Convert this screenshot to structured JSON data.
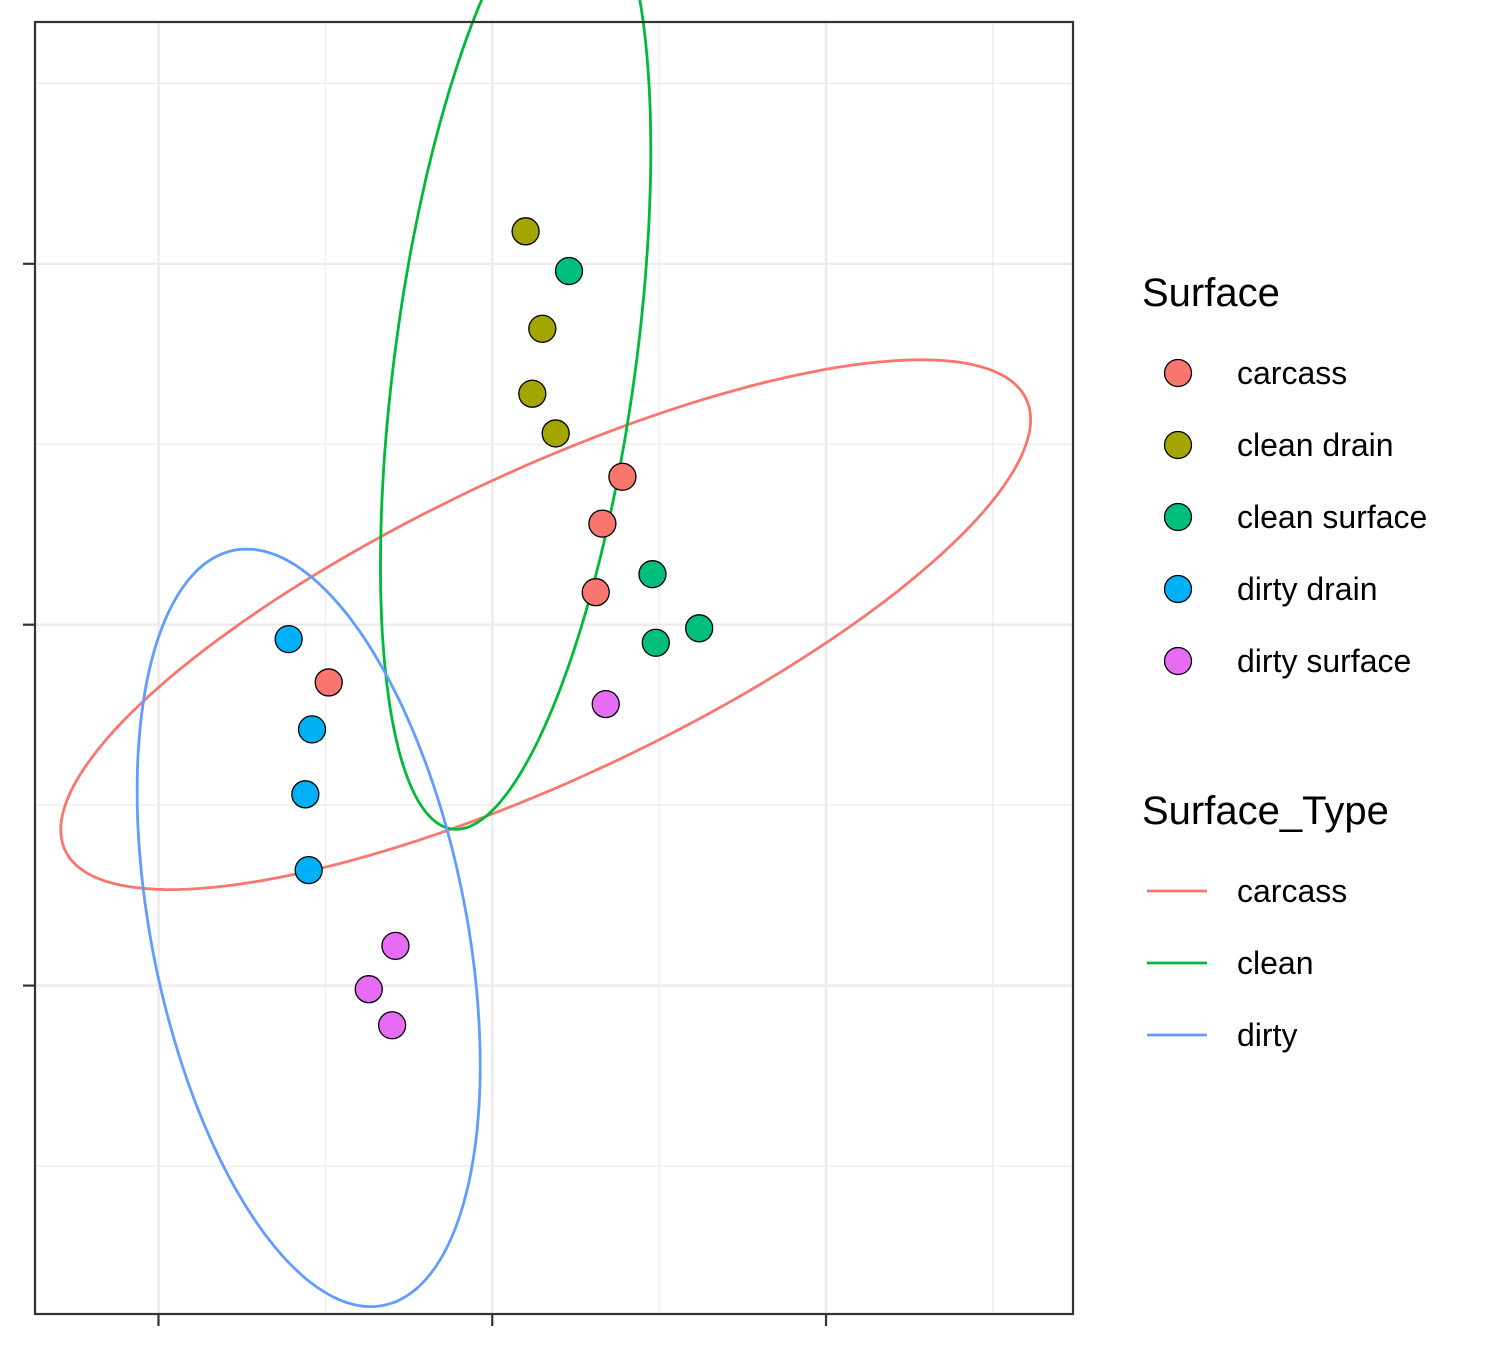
{
  "chart_data": {
    "type": "scatter",
    "xlim": [
      -0.37,
      2.74
    ],
    "ylim": [
      -1.91,
      1.67
    ],
    "x_major_ticks": [
      0,
      1,
      2
    ],
    "x_minor_ticks": [
      -0.5,
      0.5,
      1.5,
      2.5
    ],
    "y_major_ticks": [
      -1,
      0,
      1
    ],
    "y_minor_ticks": [
      -1.5,
      -0.5,
      0.5,
      1.5
    ],
    "grid": true,
    "legend_position": "right",
    "colors": {
      "carcass": "#F8766D",
      "clean drain": "#A3A500",
      "clean surface": "#00BF7D",
      "dirty drain": "#00B0F6",
      "dirty surface": "#E76BF3",
      "ellipse_carcass": "#F8766D",
      "ellipse_clean": "#00BA38",
      "ellipse_dirty": "#619CFF"
    },
    "point_legend": {
      "title": "Surface",
      "items": [
        {
          "label": "carcass",
          "key": "carcass"
        },
        {
          "label": "clean drain",
          "key": "clean drain"
        },
        {
          "label": "clean surface",
          "key": "clean surface"
        },
        {
          "label": "dirty drain",
          "key": "dirty drain"
        },
        {
          "label": "dirty surface",
          "key": "dirty surface"
        }
      ]
    },
    "ellipse_legend": {
      "title": "Surface_Type",
      "items": [
        {
          "label": "carcass",
          "key": "ellipse_carcass"
        },
        {
          "label": "clean",
          "key": "ellipse_clean"
        },
        {
          "label": "dirty",
          "key": "ellipse_dirty"
        }
      ]
    },
    "series": [
      {
        "name": "carcass",
        "points": [
          [
            1.39,
            0.41
          ],
          [
            1.33,
            0.28
          ],
          [
            1.31,
            0.09
          ],
          [
            0.51,
            -0.16
          ]
        ]
      },
      {
        "name": "clean drain",
        "points": [
          [
            1.1,
            1.09
          ],
          [
            1.15,
            0.82
          ],
          [
            1.12,
            0.64
          ],
          [
            1.19,
            0.53
          ]
        ]
      },
      {
        "name": "clean surface",
        "points": [
          [
            1.23,
            0.98
          ],
          [
            1.48,
            0.14
          ],
          [
            1.49,
            -0.05
          ],
          [
            1.62,
            -0.01
          ]
        ]
      },
      {
        "name": "dirty drain",
        "points": [
          [
            0.39,
            -0.04
          ],
          [
            0.46,
            -0.29
          ],
          [
            0.44,
            -0.47
          ],
          [
            0.45,
            -0.68
          ]
        ]
      },
      {
        "name": "dirty surface",
        "points": [
          [
            1.34,
            -0.22
          ],
          [
            0.71,
            -0.89
          ],
          [
            0.63,
            -1.01
          ],
          [
            0.7,
            -1.11
          ]
        ]
      }
    ],
    "ellipses": [
      {
        "name": "carcass",
        "center": [
          1.16,
          0.0
        ],
        "semi_axes": [
          1.57,
          0.43
        ],
        "angle_deg": 23.2
      },
      {
        "name": "clean",
        "center": [
          1.07,
          0.74
        ],
        "semi_axes": [
          0.36,
          1.32
        ],
        "angle_deg": -8.4
      },
      {
        "name": "dirty",
        "center": [
          0.45,
          -0.84
        ],
        "semi_axes": [
          0.47,
          1.07
        ],
        "angle_deg": 12.5
      }
    ]
  }
}
